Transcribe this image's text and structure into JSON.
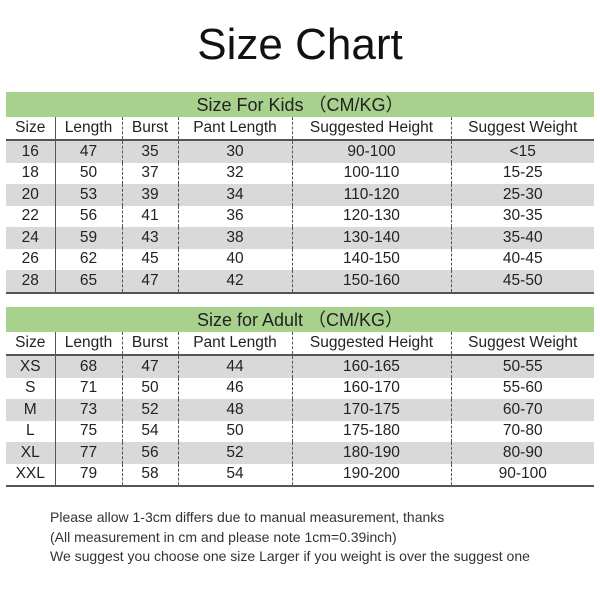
{
  "title": "Size Chart",
  "colors": {
    "banner": "#a9d18e",
    "alt_row": "#d9d9d9"
  },
  "columns": [
    "Size",
    "Length",
    "Burst",
    "Pant Length",
    "Suggested Height",
    "Suggest Weight"
  ],
  "kids": {
    "heading": "Size For Kids （CM/KG）",
    "rows": [
      [
        "16",
        "47",
        "35",
        "30",
        "90-100",
        "<15"
      ],
      [
        "18",
        "50",
        "37",
        "32",
        "100-110",
        "15-25"
      ],
      [
        "20",
        "53",
        "39",
        "34",
        "110-120",
        "25-30"
      ],
      [
        "22",
        "56",
        "41",
        "36",
        "120-130",
        "30-35"
      ],
      [
        "24",
        "59",
        "43",
        "38",
        "130-140",
        "35-40"
      ],
      [
        "26",
        "62",
        "45",
        "40",
        "140-150",
        "40-45"
      ],
      [
        "28",
        "65",
        "47",
        "42",
        "150-160",
        "45-50"
      ]
    ]
  },
  "adult": {
    "heading": "Size for Adult （CM/KG）",
    "rows": [
      [
        "XS",
        "68",
        "47",
        "44",
        "160-165",
        "50-55"
      ],
      [
        "S",
        "71",
        "50",
        "46",
        "160-170",
        "55-60"
      ],
      [
        "M",
        "73",
        "52",
        "48",
        "170-175",
        "60-70"
      ],
      [
        "L",
        "75",
        "54",
        "50",
        "175-180",
        "70-80"
      ],
      [
        "XL",
        "77",
        "56",
        "52",
        "180-190",
        "80-90"
      ],
      [
        "XXL",
        "79",
        "58",
        "54",
        "190-200",
        "90-100"
      ]
    ]
  },
  "notes": [
    "Please allow 1-3cm differs due to manual measurement, thanks",
    "(All measurement in cm and please note 1cm=0.39inch)",
    "We suggest you choose one size Larger if you weight is over the suggest one"
  ]
}
